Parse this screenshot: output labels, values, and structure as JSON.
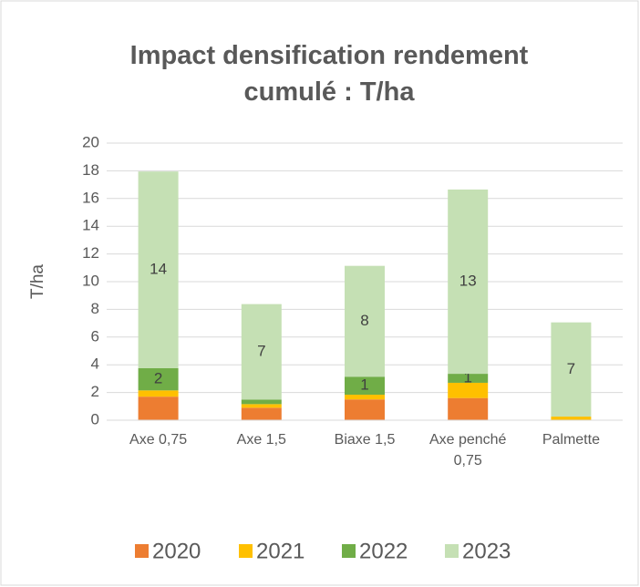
{
  "chart_data": {
    "type": "stacked_bar",
    "title": "Impact densification rendement cumulé : T/ha",
    "y_label": "T/ha",
    "categories": [
      "Axe 0,75",
      "Axe 1,5",
      "Biaxe 1,5",
      "Axe penché 0,75",
      "Palmette"
    ],
    "series": [
      {
        "name": "2020",
        "color": "#ed7d31",
        "values": [
          1.7,
          0.9,
          1.5,
          1.6,
          0
        ]
      },
      {
        "name": "2021",
        "color": "#ffc000",
        "values": [
          0.45,
          0.26,
          0.34,
          1.1,
          0.26
        ]
      },
      {
        "name": "2022",
        "color": "#70ad47",
        "values": [
          1.6,
          0.32,
          1.3,
          0.65,
          0
        ],
        "value_labels": [
          "2",
          null,
          "1",
          "1",
          null
        ]
      },
      {
        "name": "2023",
        "color": "#c5e0b4",
        "values": [
          14.2,
          6.9,
          8.0,
          13.3,
          6.8
        ],
        "value_labels": [
          "14",
          "7",
          "8",
          "13",
          "7"
        ]
      }
    ],
    "ylim": [
      0,
      20
    ],
    "yticks": [
      0,
      2,
      4,
      6,
      8,
      10,
      12,
      14,
      16,
      18,
      20
    ],
    "grid": true,
    "legend": "bottom"
  }
}
